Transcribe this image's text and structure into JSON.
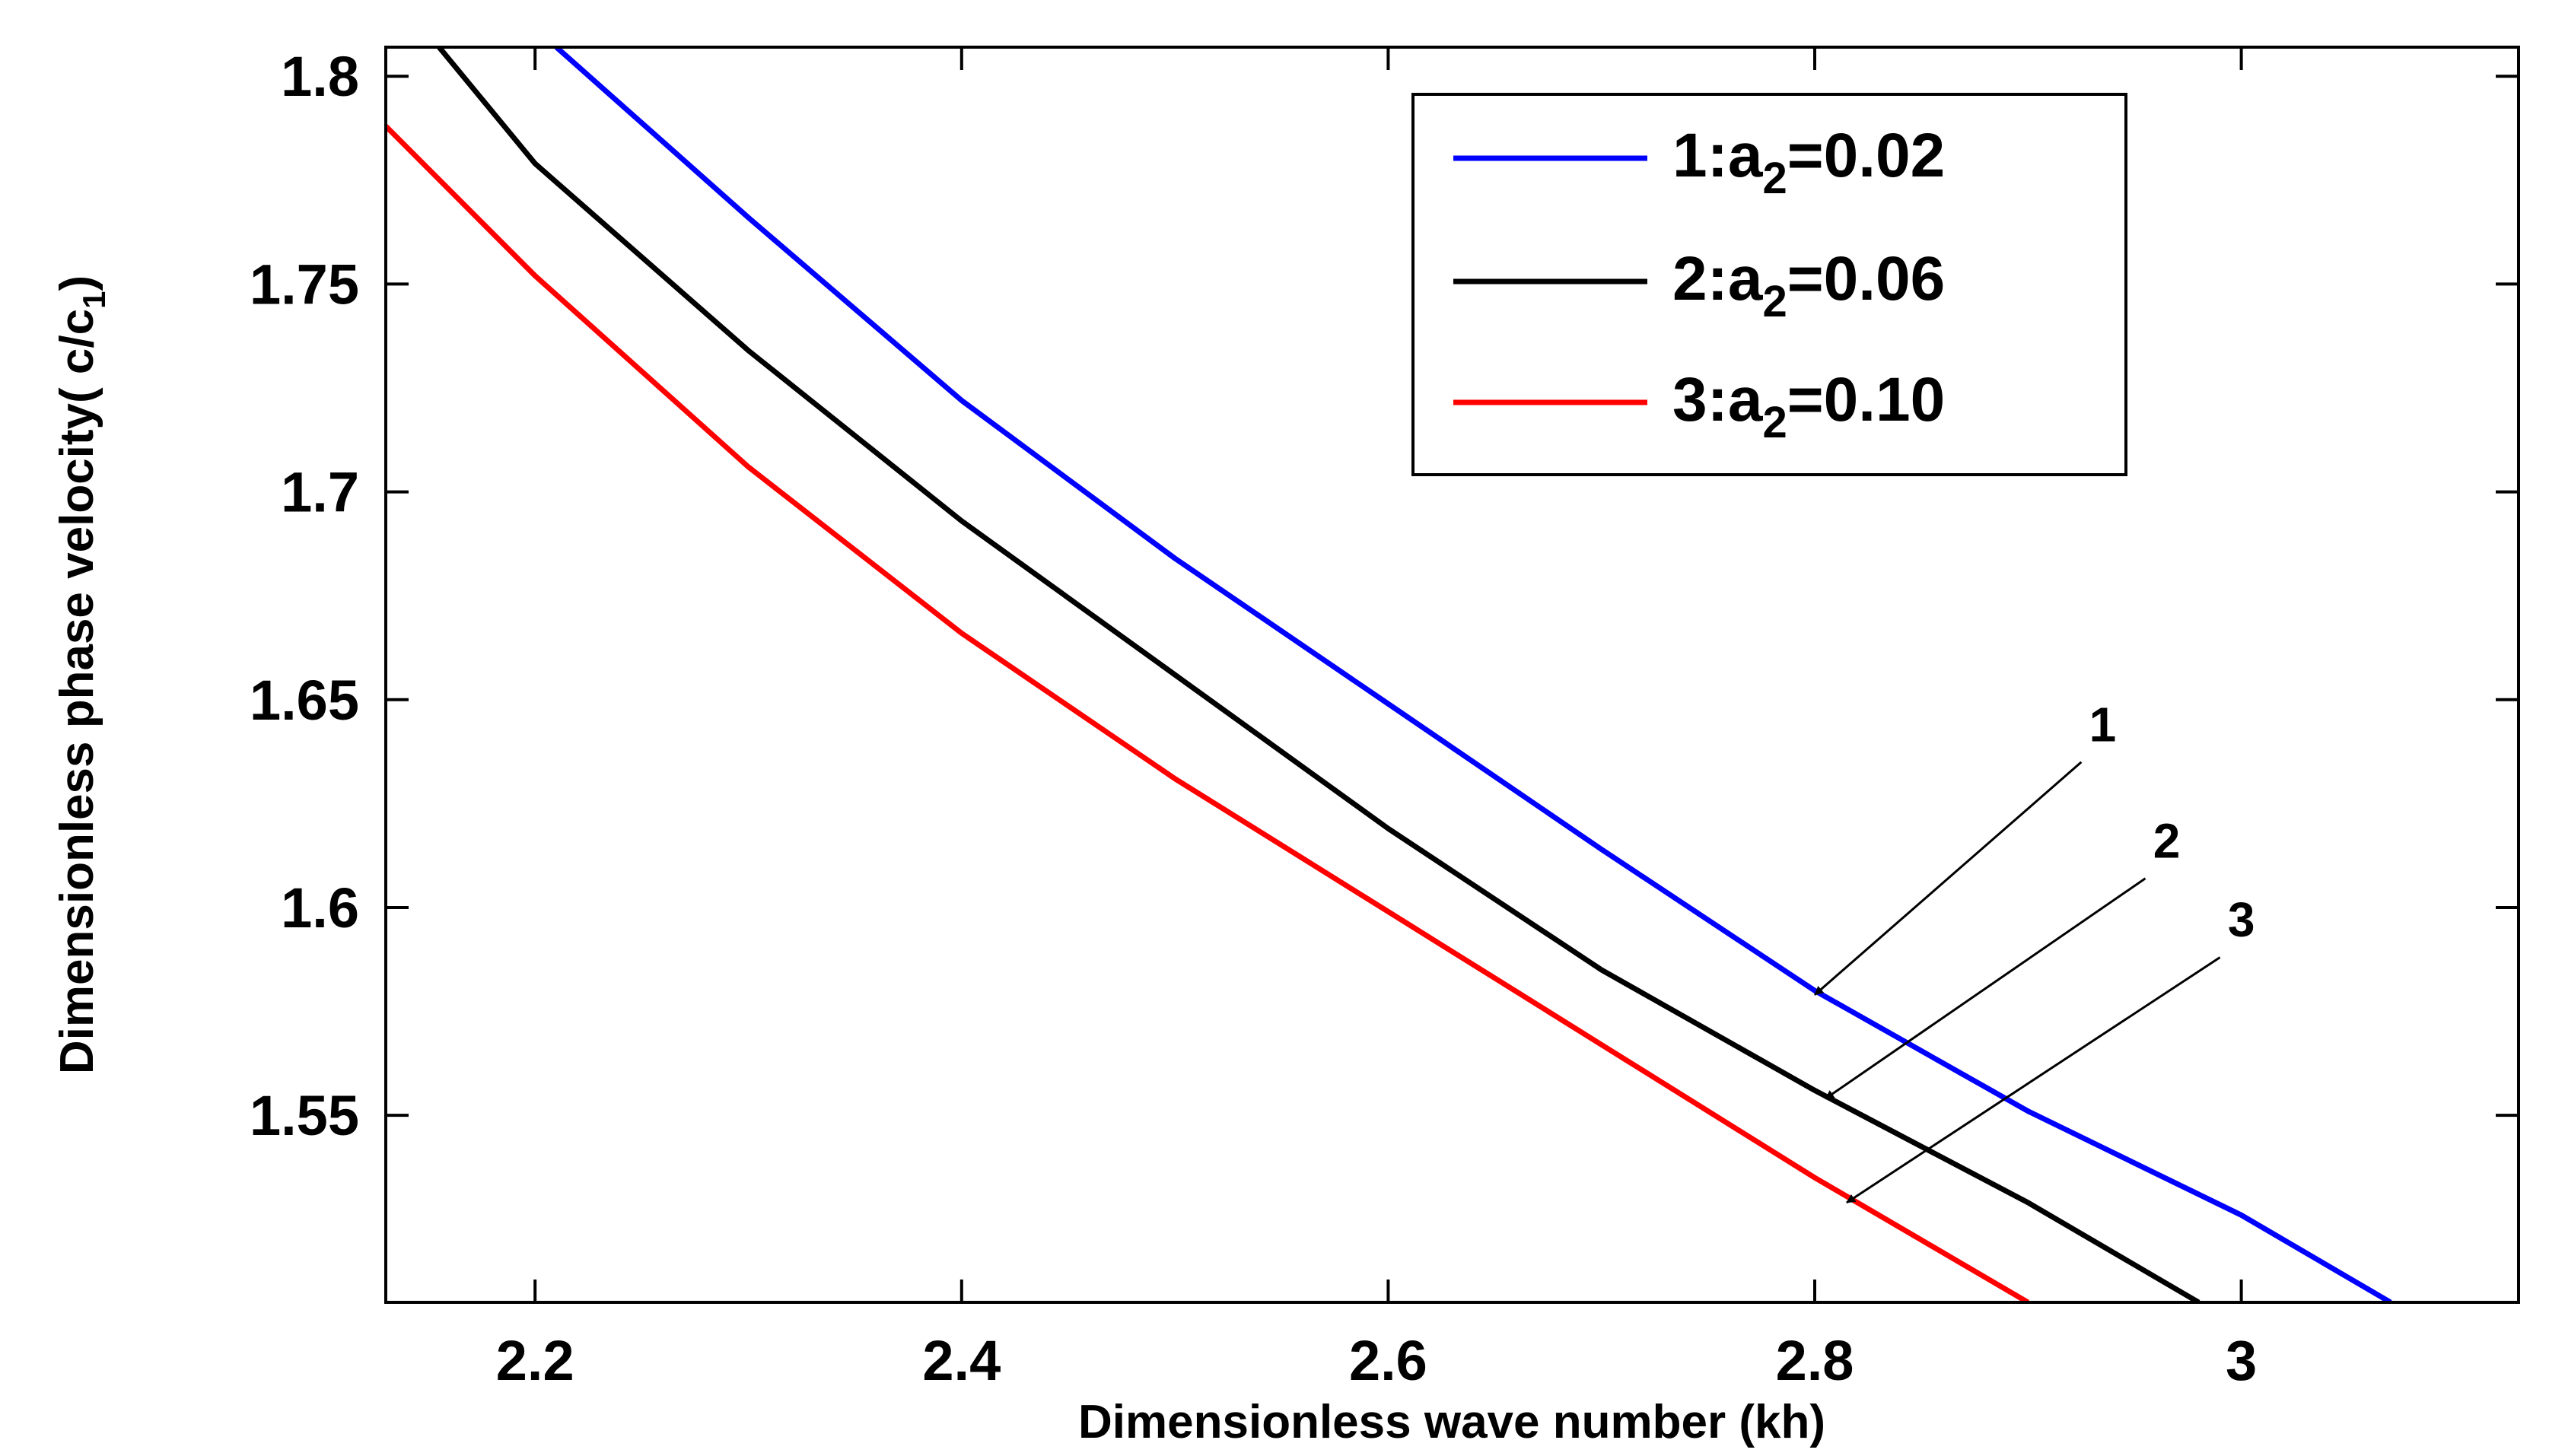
{
  "chart_data": {
    "type": "line",
    "title": "",
    "xlabel": "Dimensionless wave number (kh)",
    "ylabel": "Dimensionless phase velocity( c/c",
    "ylabel_subscript": "1",
    "ylabel_suffix": ")",
    "xlim": [
      2.13,
      3.13
    ],
    "ylim": [
      1.505,
      1.807
    ],
    "xticks": [
      2.2,
      2.4,
      2.6,
      2.8,
      3.0
    ],
    "xtick_labels": [
      "2.2",
      "2.4",
      "2.6",
      "2.8",
      "3"
    ],
    "yticks": [
      1.55,
      1.6,
      1.65,
      1.7,
      1.75,
      1.8
    ],
    "ytick_labels": [
      "1.55",
      "1.6",
      "1.65",
      "1.7",
      "1.75",
      "1.8"
    ],
    "grid": false,
    "legend_position": "top-right",
    "series": [
      {
        "name": "1:a2=0.02",
        "legend_prefix": "1:a",
        "legend_sub": "2",
        "legend_suffix": "=0.02",
        "color": "#0000ff",
        "x": [
          2.21,
          2.3,
          2.4,
          2.5,
          2.6,
          2.7,
          2.8,
          2.9,
          3.0,
          3.07
        ],
        "y": [
          1.807,
          1.766,
          1.722,
          1.684,
          1.649,
          1.614,
          1.58,
          1.551,
          1.526,
          1.505
        ]
      },
      {
        "name": "2:a2=0.06",
        "legend_prefix": "2:a",
        "legend_sub": "2",
        "legend_suffix": "=0.06",
        "color": "#000000",
        "x": [
          2.155,
          2.2,
          2.3,
          2.4,
          2.5,
          2.6,
          2.7,
          2.8,
          2.9,
          2.98
        ],
        "y": [
          1.807,
          1.779,
          1.734,
          1.693,
          1.656,
          1.619,
          1.585,
          1.556,
          1.529,
          1.505
        ]
      },
      {
        "name": "3:a2=0.10",
        "legend_prefix": "3:a",
        "legend_sub": "2",
        "legend_suffix": "=0.10",
        "color": "#ff0000",
        "x": [
          2.13,
          2.2,
          2.3,
          2.4,
          2.5,
          2.6,
          2.7,
          2.8,
          2.9
        ],
        "y": [
          1.788,
          1.752,
          1.706,
          1.666,
          1.631,
          1.599,
          1.567,
          1.535,
          1.505
        ]
      }
    ],
    "annotations": [
      {
        "text": "1",
        "text_x": 2.935,
        "text_y": 1.64,
        "arrow_from": [
          2.925,
          1.635
        ],
        "arrow_to": [
          2.8,
          1.579
        ]
      },
      {
        "text": "2",
        "text_x": 2.965,
        "text_y": 1.612,
        "arrow_from": [
          2.955,
          1.607
        ],
        "arrow_to": [
          2.805,
          1.554
        ]
      },
      {
        "text": "3",
        "text_x": 3.0,
        "text_y": 1.593,
        "arrow_from": [
          2.99,
          1.588
        ],
        "arrow_to": [
          2.815,
          1.529
        ]
      }
    ]
  }
}
